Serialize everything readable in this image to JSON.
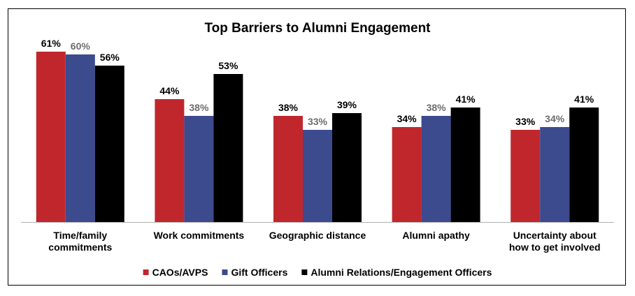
{
  "chart_data": {
    "type": "bar",
    "title": "Top Barriers  to Alumni Engagement",
    "categories": [
      [
        "Time/family",
        "commitments"
      ],
      [
        "Work commitments"
      ],
      [
        "Geographic distance"
      ],
      [
        "Alumni apathy"
      ],
      [
        "Uncertainty about",
        "how to get involved"
      ]
    ],
    "series": [
      {
        "name": "CAOs/AVPS",
        "color": "#c0272d",
        "label_color": "#000000",
        "values": [
          61,
          44,
          38,
          34,
          33
        ]
      },
      {
        "name": "Gift Officers",
        "color": "#3c4a8e",
        "label_color": "#6d6d6d",
        "values": [
          60,
          38,
          33,
          38,
          34
        ]
      },
      {
        "name": "Alumni Relations/Engagement Officers",
        "color": "#000000",
        "label_color": "#000000",
        "values": [
          56,
          53,
          39,
          41,
          41
        ]
      }
    ],
    "value_suffix": "%",
    "ylim": [
      0,
      65
    ],
    "grid": false,
    "legend_position": "bottom"
  }
}
